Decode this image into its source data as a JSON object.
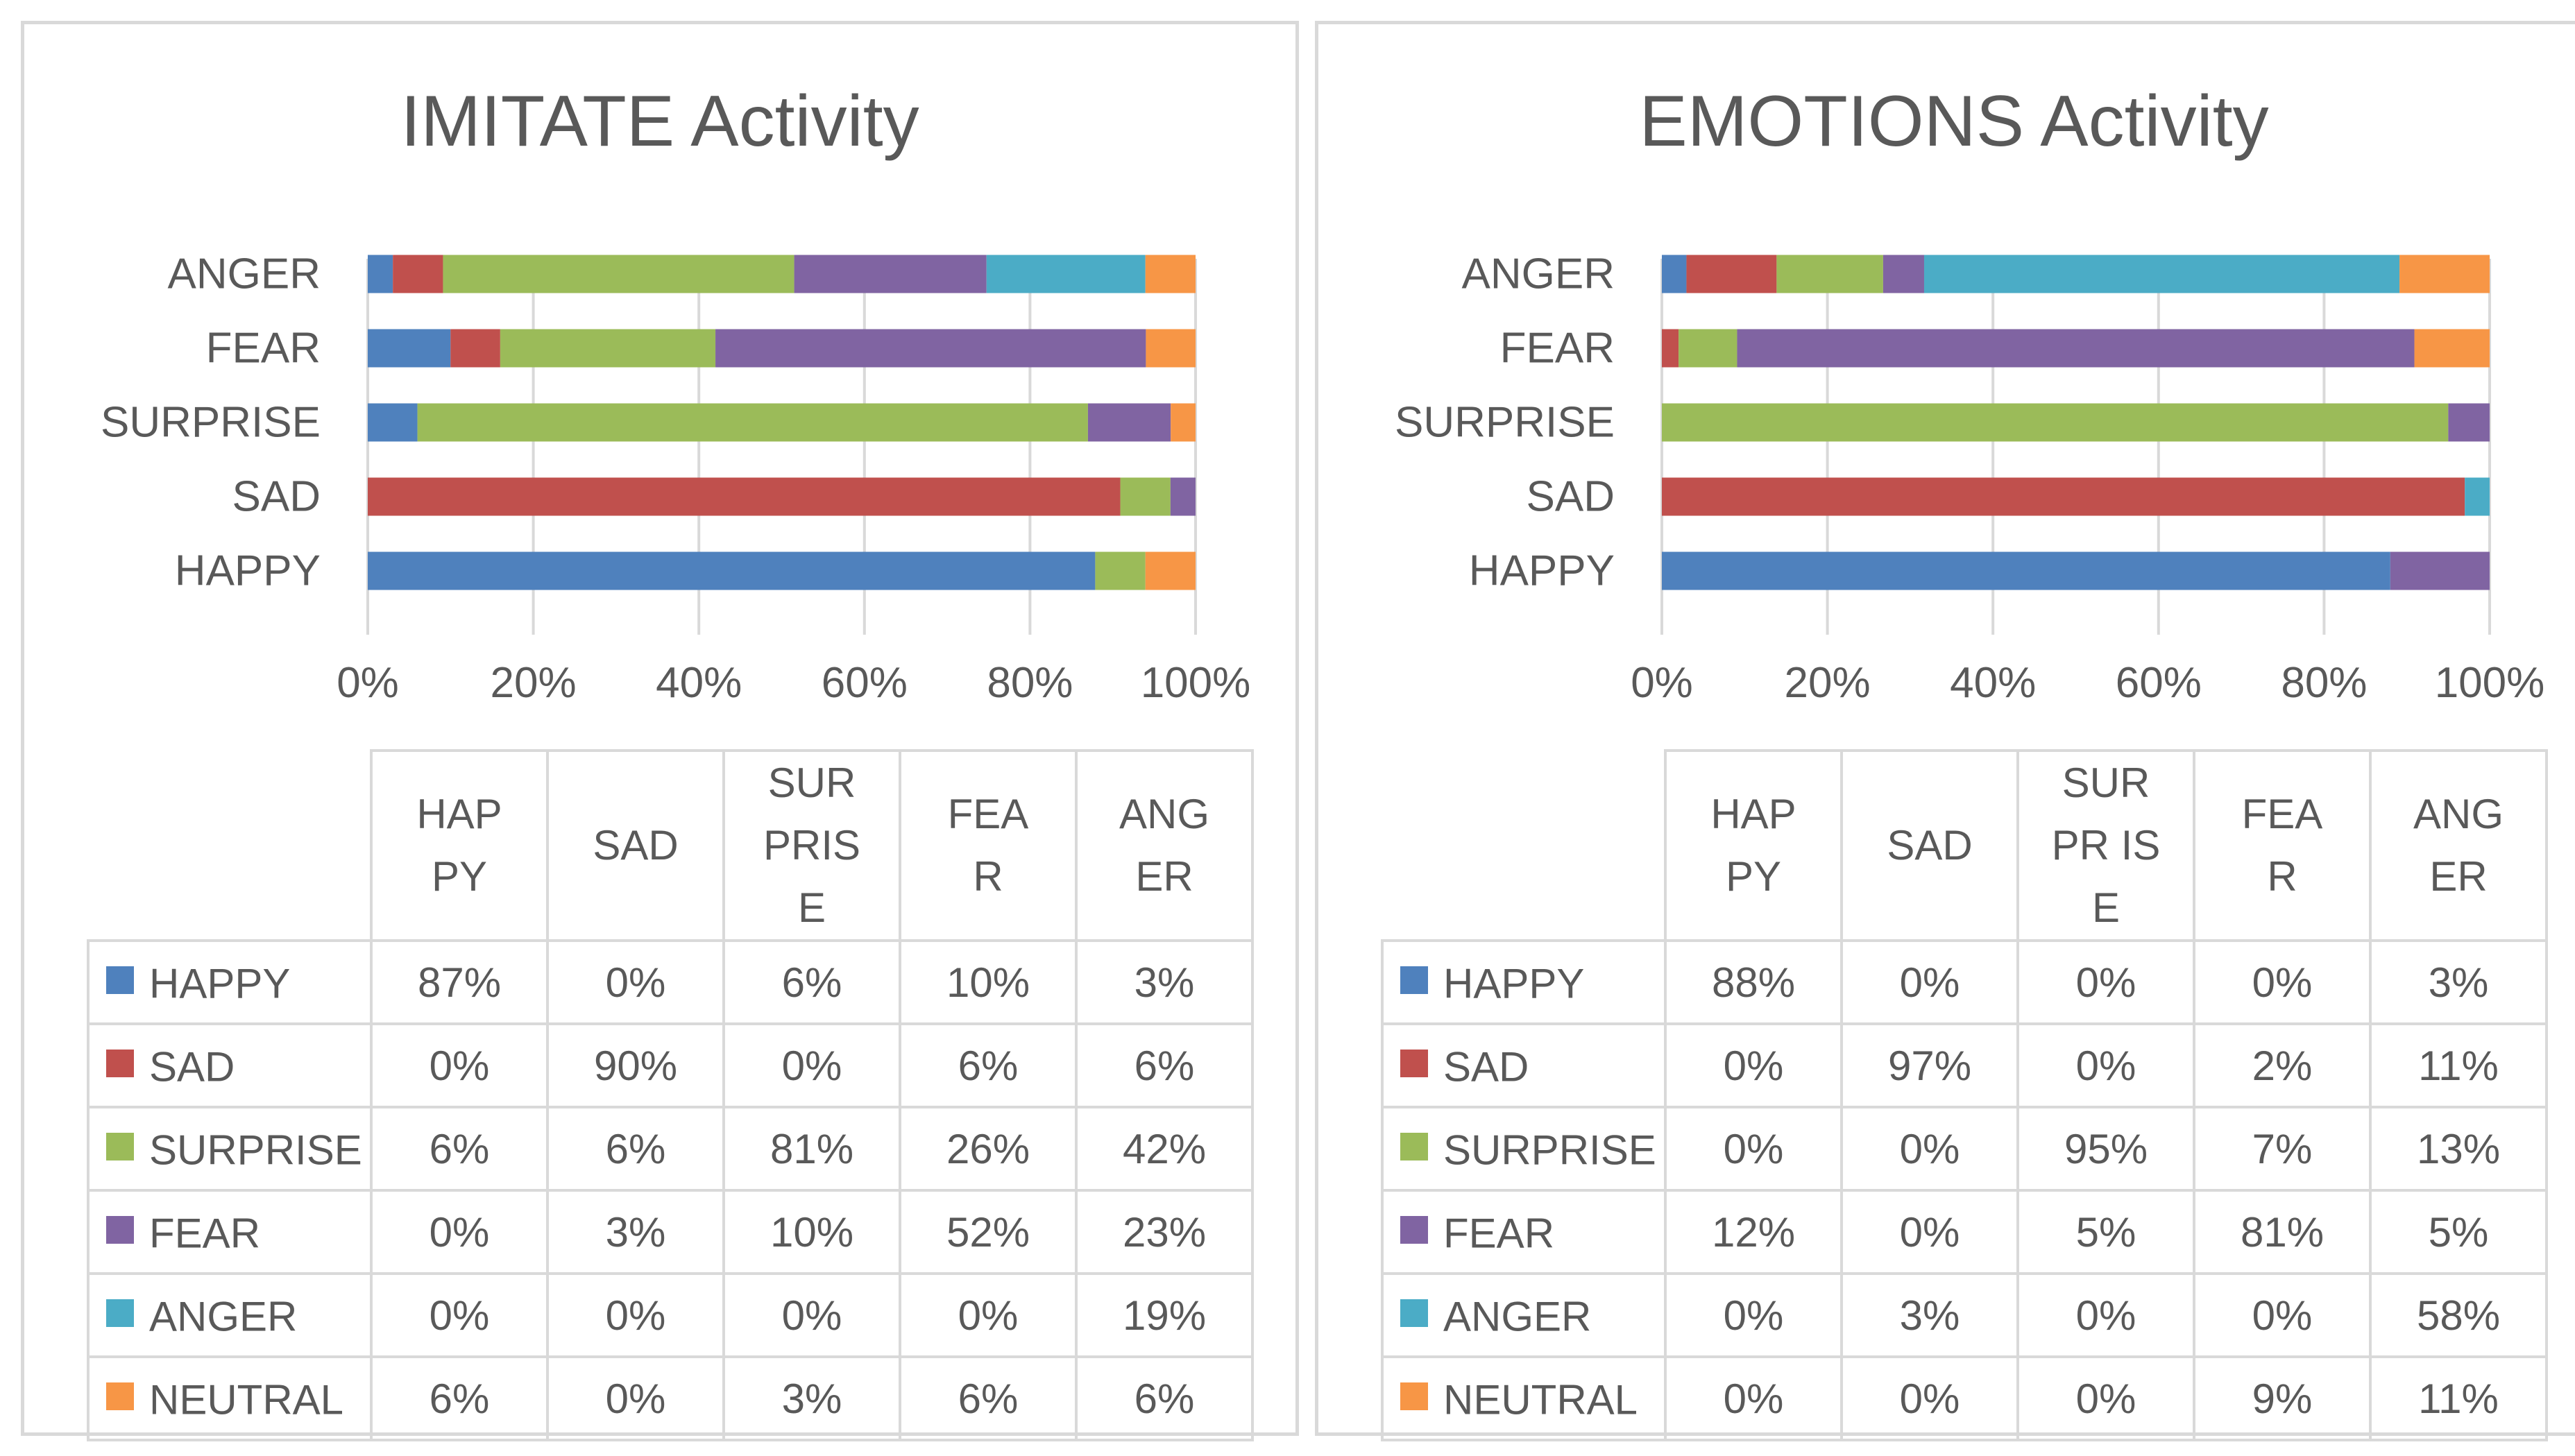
{
  "colors": {
    "HAPPY": "#4f81bd",
    "SAD": "#c0504d",
    "SURPRISE": "#9bbb59",
    "FEAR": "#8064a2",
    "ANGER": "#4bacc6",
    "NEUTRAL": "#f79646",
    "grid": "#d9d9d9",
    "text": "#595959",
    "border": "#d9d9d9"
  },
  "chart_data": [
    {
      "type": "bar",
      "orientation": "horizontal",
      "stacked": "percent",
      "title": "IMITATE Activity",
      "categories": [
        "HAPPY",
        "SAD",
        "SURPRISE",
        "FEAR",
        "ANGER"
      ],
      "series": [
        {
          "name": "HAPPY",
          "values": [
            87,
            0,
            6,
            10,
            3
          ]
        },
        {
          "name": "SAD",
          "values": [
            0,
            90,
            0,
            6,
            6
          ]
        },
        {
          "name": "SURPRISE",
          "values": [
            6,
            6,
            81,
            26,
            42
          ]
        },
        {
          "name": "FEAR",
          "values": [
            0,
            3,
            10,
            52,
            23
          ]
        },
        {
          "name": "ANGER",
          "values": [
            0,
            0,
            0,
            0,
            19
          ]
        },
        {
          "name": "NEUTRAL",
          "values": [
            6,
            0,
            3,
            6,
            6
          ]
        }
      ],
      "xlim": [
        0,
        100
      ],
      "xticks": [
        "0%",
        "20%",
        "40%",
        "60%",
        "80%",
        "100%"
      ],
      "grid": true,
      "table": {
        "headers": [
          "HAPPY",
          "SAD",
          "SURPRISE",
          "FEAR",
          "ANGER"
        ],
        "header_display": [
          "HAPPY",
          "SAD",
          "SURPRISE",
          "FEAR",
          "ANGER"
        ],
        "rows": [
          {
            "label": "HAPPY",
            "cells": [
              "87%",
              "0%",
              "6%",
              "10%",
              "3%"
            ]
          },
          {
            "label": "SAD",
            "cells": [
              "0%",
              "90%",
              "0%",
              "6%",
              "6%"
            ]
          },
          {
            "label": "SURPRISE",
            "cells": [
              "6%",
              "6%",
              "81%",
              "26%",
              "42%"
            ]
          },
          {
            "label": "FEAR",
            "cells": [
              "0%",
              "3%",
              "10%",
              "52%",
              "23%"
            ]
          },
          {
            "label": "ANGER",
            "cells": [
              "0%",
              "0%",
              "0%",
              "0%",
              "19%"
            ]
          },
          {
            "label": "NEUTRAL",
            "cells": [
              "6%",
              "0%",
              "3%",
              "6%",
              "6%"
            ]
          }
        ]
      }
    },
    {
      "type": "bar",
      "orientation": "horizontal",
      "stacked": "percent",
      "title": "EMOTIONS Activity",
      "categories": [
        "HAPPY",
        "SAD",
        "SURPRISE",
        "FEAR",
        "ANGER"
      ],
      "series": [
        {
          "name": "HAPPY",
          "values": [
            88,
            0,
            0,
            0,
            3
          ]
        },
        {
          "name": "SAD",
          "values": [
            0,
            97,
            0,
            2,
            11
          ]
        },
        {
          "name": "SURPRISE",
          "values": [
            0,
            0,
            95,
            7,
            13
          ]
        },
        {
          "name": "FEAR",
          "values": [
            12,
            0,
            5,
            81,
            5
          ]
        },
        {
          "name": "ANGER",
          "values": [
            0,
            3,
            0,
            0,
            58
          ]
        },
        {
          "name": "NEUTRAL",
          "values": [
            0,
            0,
            0,
            9,
            11
          ]
        }
      ],
      "xlim": [
        0,
        100
      ],
      "xticks": [
        "0%",
        "20%",
        "40%",
        "60%",
        "80%",
        "100%"
      ],
      "grid": true,
      "table": {
        "headers": [
          "HAPPY",
          "SAD",
          "SURPRISE",
          "FEAR",
          "ANGER"
        ],
        "header_display": [
          "HAPPY",
          "SAD",
          "SURPR ISE",
          "FEAR",
          "ANGER"
        ],
        "rows": [
          {
            "label": "HAPPY",
            "cells": [
              "88%",
              "0%",
              "0%",
              "0%",
              "3%"
            ]
          },
          {
            "label": "SAD",
            "cells": [
              "0%",
              "97%",
              "0%",
              "2%",
              "11%"
            ]
          },
          {
            "label": "SURPRISE",
            "cells": [
              "0%",
              "0%",
              "95%",
              "7%",
              "13%"
            ]
          },
          {
            "label": "FEAR",
            "cells": [
              "12%",
              "0%",
              "5%",
              "81%",
              "5%"
            ]
          },
          {
            "label": "ANGER",
            "cells": [
              "0%",
              "3%",
              "0%",
              "0%",
              "58%"
            ]
          },
          {
            "label": "NEUTRAL",
            "cells": [
              "0%",
              "0%",
              "0%",
              "9%",
              "11%"
            ]
          }
        ]
      }
    }
  ]
}
